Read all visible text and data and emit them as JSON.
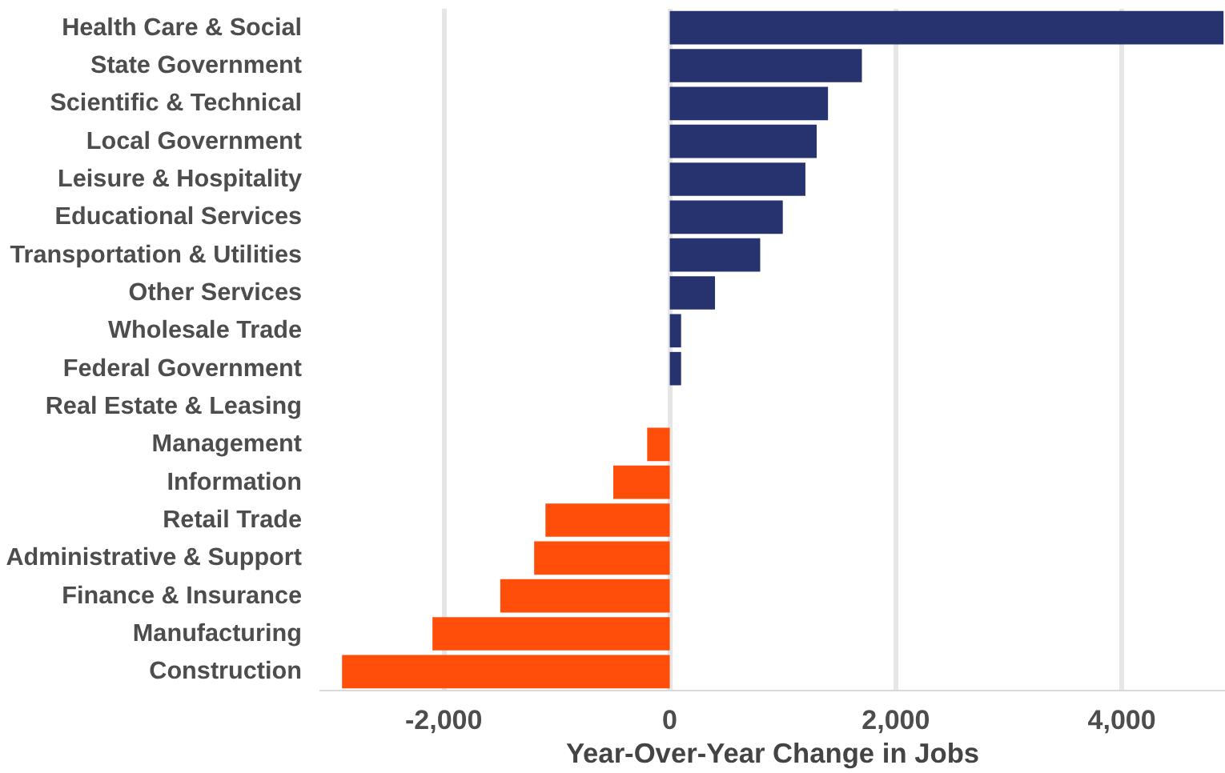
{
  "chart_data": {
    "type": "bar",
    "orientation": "horizontal",
    "xlabel": "Year-Over-Year Change in Jobs",
    "categories": [
      "Health Care & Social",
      "State Government",
      "Scientific & Technical",
      "Local Government",
      "Leisure & Hospitality",
      "Educational Services",
      "Transportation & Utilities",
      "Other Services",
      "Wholesale Trade",
      "Federal Government",
      "Real Estate & Leasing",
      "Management",
      "Information",
      "Retail Trade",
      "Administrative & Support",
      "Finance & Insurance",
      "Manufacturing",
      "Construction"
    ],
    "values": [
      4900,
      1700,
      1400,
      1300,
      1200,
      1000,
      800,
      400,
      100,
      100,
      0,
      -200,
      -500,
      -1100,
      -1200,
      -1500,
      -2100,
      -2900
    ],
    "colors": [
      "#27336e",
      "#27336e",
      "#27336e",
      "#27336e",
      "#27336e",
      "#27336e",
      "#27336e",
      "#27336e",
      "#27336e",
      "#27336e",
      "#27336e",
      "#ff4e0a",
      "#ff4e0a",
      "#ff4e0a",
      "#ff4e0a",
      "#ff4e0a",
      "#ff4e0a",
      "#ff4e0a"
    ],
    "xlim": [
      -3100,
      4920
    ],
    "xticks": [
      {
        "value": -2000,
        "label": "-2,000"
      },
      0,
      {
        "value": 2000,
        "label": "2,000"
      },
      {
        "value": 4000,
        "label": "4,000"
      }
    ],
    "grid": "x"
  }
}
